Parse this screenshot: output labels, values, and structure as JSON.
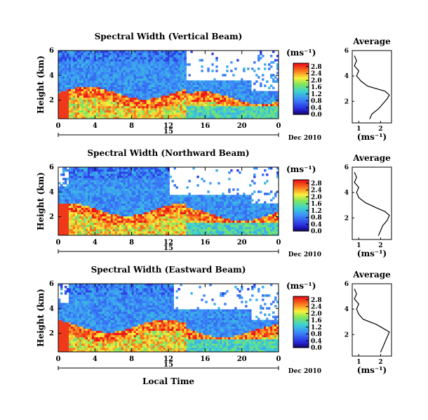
{
  "figure": {
    "xlabel": "Local Time",
    "date_label": "Dec 2010",
    "unit_label": "(ms⁻¹)",
    "avg_title": "Average",
    "avg_xlabel": "(ms⁻¹)"
  },
  "chart_data": [
    {
      "type": "heatmap",
      "title": "Spectral Width (Vertical Beam)",
      "ylabel": "Height (km)",
      "xlabel": "Local Time",
      "x_ticks": [
        "0",
        "4",
        "8",
        "12",
        "16",
        "20",
        "0"
      ],
      "x_day_label": "15",
      "xlim": [
        0,
        24
      ],
      "y_ticks": [
        "2",
        "4",
        "6"
      ],
      "ylim": [
        0.5,
        6
      ],
      "colorbar_ticks": [
        "0.0",
        "0.4",
        "0.8",
        "1.2",
        "1.6",
        "2.0",
        "2.4",
        "2.8"
      ],
      "colorbar_range": [
        0,
        3
      ],
      "blank_from_hour": 14,
      "blank_top_km": 3.6,
      "colors": {
        "low": "#1a0a8c",
        "mid": "#3ad1c8",
        "high": "#e8141a"
      },
      "average_profile": {
        "xlim": [
          0.7,
          2.5
        ],
        "x_ticks": [
          "1",
          "2"
        ],
        "y_ticks": [
          "2",
          "4",
          "6"
        ],
        "height_km": [
          0.6,
          1.0,
          1.4,
          1.8,
          2.2,
          2.5,
          2.8,
          3.2,
          3.6,
          4.0,
          4.4,
          4.8,
          5.2,
          5.6
        ],
        "width": [
          1.5,
          1.6,
          1.9,
          2.1,
          2.3,
          2.4,
          2.2,
          1.4,
          1.1,
          0.9,
          1.0,
          0.8,
          0.9,
          0.8
        ]
      }
    },
    {
      "type": "heatmap",
      "title": "Spectral Width (Northward Beam)",
      "ylabel": "Height (km)",
      "xlabel": "Local Time",
      "x_ticks": [
        "0",
        "4",
        "8",
        "12",
        "16",
        "20",
        "0"
      ],
      "x_day_label": "15",
      "xlim": [
        0,
        24
      ],
      "y_ticks": [
        "2",
        "4",
        "6"
      ],
      "ylim": [
        0.5,
        6
      ],
      "colorbar_ticks": [
        "0.0",
        "0.4",
        "0.8",
        "1.2",
        "1.6",
        "2.0",
        "2.4",
        "2.8"
      ],
      "colorbar_range": [
        0,
        3
      ],
      "blank_from_hour": 12,
      "blank_top_km": 3.8,
      "colors": {
        "low": "#1a0a8c",
        "mid": "#3ad1c8",
        "high": "#e8141a"
      },
      "average_profile": {
        "xlim": [
          0.7,
          2.5
        ],
        "x_ticks": [
          "1",
          "2"
        ],
        "y_ticks": [
          "2",
          "4",
          "6"
        ],
        "height_km": [
          0.6,
          1.0,
          1.4,
          1.8,
          2.2,
          2.5,
          2.8,
          3.2,
          3.6,
          4.0,
          4.4,
          4.8,
          5.2,
          5.6
        ],
        "width": [
          1.9,
          2.0,
          2.1,
          2.3,
          2.4,
          2.2,
          1.8,
          1.3,
          1.0,
          0.9,
          1.0,
          0.8,
          0.9,
          0.8
        ]
      }
    },
    {
      "type": "heatmap",
      "title": "Spectral Width (Eastward Beam)",
      "ylabel": "Height (km)",
      "xlabel": "Local Time",
      "x_ticks": [
        "0",
        "4",
        "8",
        "12",
        "16",
        "20",
        "0"
      ],
      "x_day_label": "15",
      "xlim": [
        0,
        24
      ],
      "y_ticks": [
        "2",
        "4",
        "6"
      ],
      "ylim": [
        0.5,
        6
      ],
      "colorbar_ticks": [
        "0.0",
        "0.4",
        "0.8",
        "1.2",
        "1.6",
        "2.0",
        "2.4",
        "2.8"
      ],
      "colorbar_range": [
        0,
        3
      ],
      "blank_from_hour": 12.5,
      "blank_top_km": 3.9,
      "colors": {
        "low": "#1a0a8c",
        "mid": "#3ad1c8",
        "high": "#e8141a"
      },
      "average_profile": {
        "xlim": [
          0.7,
          2.5
        ],
        "x_ticks": [
          "1",
          "2"
        ],
        "y_ticks": [
          "2",
          "4",
          "6"
        ],
        "height_km": [
          0.6,
          1.0,
          1.4,
          1.8,
          2.2,
          2.5,
          2.8,
          3.2,
          3.6,
          4.0,
          4.4,
          4.8,
          5.2,
          5.6
        ],
        "width": [
          2.0,
          2.1,
          2.2,
          2.3,
          2.4,
          2.1,
          1.8,
          1.2,
          1.0,
          0.9,
          1.0,
          0.8,
          0.9,
          0.8
        ]
      }
    }
  ]
}
